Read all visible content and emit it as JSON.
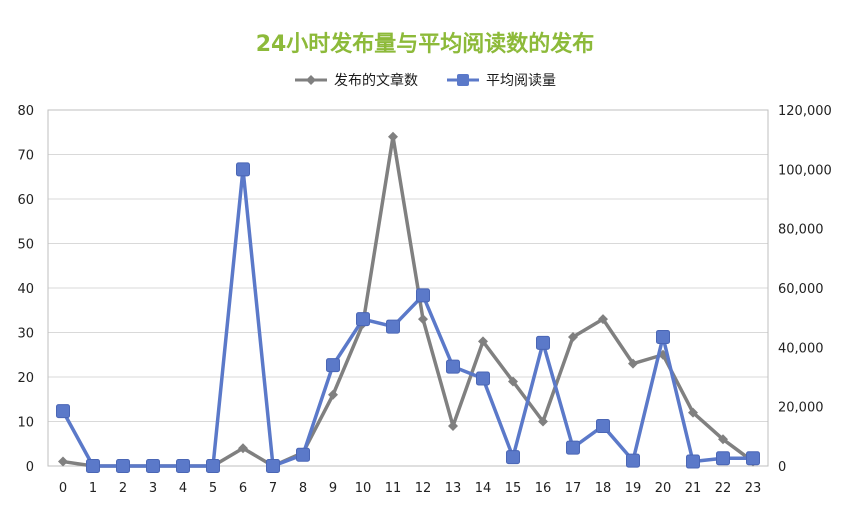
{
  "chart_data": {
    "type": "line",
    "title": "24小时发布量与平均阅读数的发布",
    "x": [
      0,
      1,
      2,
      3,
      4,
      5,
      6,
      7,
      8,
      9,
      10,
      11,
      12,
      13,
      14,
      15,
      16,
      17,
      18,
      19,
      20,
      21,
      22,
      23
    ],
    "x_tick_labels": [
      "0",
      "1",
      "2",
      "3",
      "4",
      "5",
      "6",
      "7",
      "8",
      "9",
      "10",
      "11",
      "12",
      "13",
      "14",
      "15",
      "16",
      "17",
      "18",
      "19",
      "20",
      "21",
      "22",
      "23"
    ],
    "y_left_range": [
      0,
      80
    ],
    "y_left_ticks": [
      "0",
      "10",
      "20",
      "30",
      "40",
      "50",
      "60",
      "70",
      "80"
    ],
    "y_right_range": [
      0,
      120000
    ],
    "y_right_ticks": [
      "0",
      "20,000",
      "40,000",
      "60,000",
      "80,000",
      "100,000",
      "120,000"
    ],
    "grid": true,
    "legend_position": "top",
    "series": [
      {
        "name": "发布的文章数",
        "axis": "left",
        "color": "#808080",
        "marker": "diamond",
        "values": [
          1,
          0,
          0,
          0,
          0,
          0,
          4,
          0,
          3,
          16,
          32,
          74,
          33,
          9,
          28,
          19,
          10,
          29,
          33,
          23,
          25,
          12,
          6,
          1
        ]
      },
      {
        "name": "平均阅读量",
        "axis": "right",
        "color": "#5b79c9",
        "marker": "square",
        "values": [
          18500,
          0,
          0,
          0,
          0,
          0,
          100000,
          0,
          3800,
          34000,
          49500,
          47000,
          57500,
          33500,
          29500,
          3000,
          41500,
          6200,
          13500,
          1800,
          43500,
          1500,
          2600,
          2600
        ]
      }
    ]
  }
}
